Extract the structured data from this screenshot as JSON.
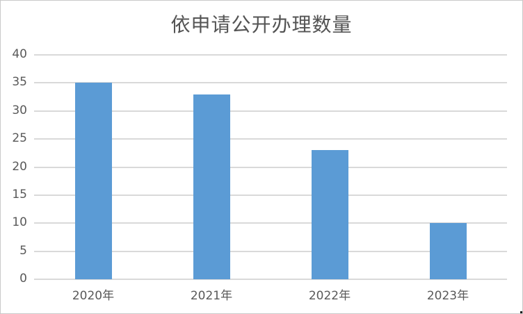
{
  "chart": {
    "title": "依申请公开办理数量"
  },
  "chart_data": {
    "type": "bar",
    "title": "依申请公开办理数量",
    "categories": [
      "2020年",
      "2021年",
      "2022年",
      "2023年"
    ],
    "values": [
      35,
      33,
      23,
      10
    ],
    "xlabel": "",
    "ylabel": "",
    "ylim": [
      0,
      40
    ],
    "yticks": [
      0,
      5,
      10,
      15,
      20,
      25,
      30,
      35,
      40
    ],
    "grid": true,
    "legend": false,
    "colors": {
      "bar": "#5b9bd5",
      "gridline": "#d9d9d9",
      "axis_text": "#595959",
      "title_text": "#545454",
      "frame_border": "#c9c9c9"
    }
  }
}
